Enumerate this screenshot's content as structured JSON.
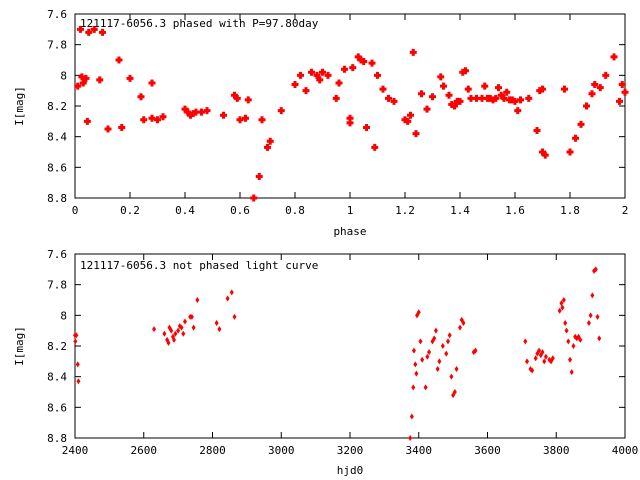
{
  "colors": {
    "points": "#ff0000",
    "axes": "#000000",
    "background": "#ffffff"
  },
  "chart_data": [
    {
      "type": "scatter",
      "title": "121117-6056.3 phased with P=97.80day",
      "xlabel": "phase",
      "ylabel": "I[mag]",
      "xlim": [
        0,
        2
      ],
      "ylim": [
        8.8,
        7.6
      ],
      "y_inverted": true,
      "grid": false,
      "marker": "cross",
      "x_ticks": [
        "0",
        "0.2",
        "0.4",
        "0.6",
        "0.8",
        "1",
        "1.2",
        "1.4",
        "1.6",
        "1.8",
        "2"
      ],
      "y_ticks": [
        "7.6",
        "7.8",
        "8",
        "8.2",
        "8.4",
        "8.6",
        "8.8"
      ],
      "series": [
        {
          "x": [
            0.01,
            0.02,
            0.025,
            0.03,
            0.04,
            0.045,
            0.05,
            0.07,
            0.09,
            0.1,
            0.12,
            0.16,
            0.17,
            0.2,
            0.24,
            0.25,
            0.28,
            0.28,
            0.3,
            0.32,
            0.4,
            0.41,
            0.42,
            0.43,
            0.44,
            0.46,
            0.48,
            0.54,
            0.58,
            0.59,
            0.6,
            0.62,
            0.63,
            0.65,
            0.67,
            0.68,
            0.7,
            0.71,
            0.75,
            0.8,
            0.82,
            0.84,
            0.86,
            0.88,
            0.89,
            0.9,
            0.92,
            0.95,
            0.96,
            0.98,
            1.0,
            1.0,
            1.01,
            1.03,
            1.04,
            1.05,
            1.06,
            1.08,
            1.09,
            1.1,
            1.12,
            1.14,
            1.16,
            1.2,
            1.21,
            1.22,
            1.23,
            1.24,
            1.26,
            1.28,
            1.3,
            1.33,
            1.34,
            1.36,
            1.37,
            1.38,
            1.39,
            1.4,
            1.41,
            1.42,
            1.43,
            1.44,
            1.46,
            1.48,
            1.49,
            1.5,
            1.51,
            1.52,
            1.53,
            1.54,
            1.55,
            1.56,
            1.57,
            1.58,
            1.59,
            1.6,
            1.61,
            1.62,
            1.65,
            1.68,
            1.69,
            1.7,
            1.7,
            1.71,
            1.78,
            1.8,
            1.82,
            1.84,
            1.86,
            1.88,
            1.89,
            1.91,
            1.93,
            1.96,
            1.98,
            1.99,
            2.0
          ],
          "y": [
            8.07,
            7.7,
            8.01,
            8.05,
            8.02,
            8.3,
            7.72,
            7.7,
            8.03,
            7.72,
            8.35,
            7.9,
            8.34,
            8.02,
            8.14,
            8.29,
            8.05,
            8.28,
            8.29,
            8.27,
            8.22,
            8.24,
            8.26,
            8.25,
            8.24,
            8.24,
            8.23,
            8.26,
            8.13,
            8.15,
            8.29,
            8.28,
            8.16,
            8.8,
            8.66,
            8.29,
            8.47,
            8.43,
            8.23,
            8.06,
            8.0,
            8.1,
            7.98,
            8.0,
            8.03,
            7.98,
            8.0,
            8.15,
            8.05,
            7.96,
            8.28,
            8.31,
            7.95,
            7.88,
            7.9,
            7.91,
            8.34,
            7.92,
            8.47,
            8.0,
            8.09,
            8.15,
            8.17,
            8.29,
            8.3,
            8.26,
            7.85,
            8.38,
            8.12,
            8.22,
            8.14,
            8.01,
            8.07,
            8.13,
            8.19,
            8.2,
            8.17,
            8.17,
            7.98,
            7.97,
            8.09,
            8.15,
            8.15,
            8.15,
            8.07,
            8.15,
            8.15,
            8.16,
            8.15,
            8.08,
            8.13,
            8.15,
            8.11,
            8.16,
            8.16,
            8.17,
            8.23,
            8.16,
            8.15,
            8.36,
            8.1,
            8.5,
            8.09,
            8.52,
            8.09,
            8.5,
            8.41,
            8.32,
            8.2,
            8.12,
            8.06,
            8.08,
            8.0,
            7.88,
            8.17,
            8.06,
            8.11
          ]
        }
      ]
    },
    {
      "type": "scatter",
      "title": "121117-6056.3 not phased light curve",
      "xlabel": "hjd0",
      "ylabel": "I[mag]",
      "xlim": [
        2400,
        4000
      ],
      "ylim": [
        8.8,
        7.6
      ],
      "y_inverted": true,
      "grid": false,
      "marker": "diamond",
      "x_ticks": [
        "2400",
        "2600",
        "2800",
        "3000",
        "3200",
        "3400",
        "3600",
        "3800",
        "4000"
      ],
      "y_ticks": [
        "7.6",
        "7.8",
        "8",
        "8.2",
        "8.4",
        "8.6",
        "8.8"
      ],
      "series": [
        {
          "x": [
            2400,
            2401,
            2404,
            2408,
            2410,
            2630,
            2660,
            2668,
            2672,
            2675,
            2680,
            2685,
            2688,
            2692,
            2700,
            2705,
            2710,
            2715,
            2720,
            2735,
            2740,
            2745,
            2756,
            2812,
            2820,
            2844,
            2856,
            2864,
            3375,
            3380,
            3384,
            3386,
            3390,
            3393,
            3395,
            3400,
            3405,
            3410,
            3420,
            3425,
            3430,
            3440,
            3445,
            3450,
            3455,
            3460,
            3470,
            3480,
            3485,
            3490,
            3495,
            3500,
            3505,
            3510,
            3520,
            3525,
            3530,
            3560,
            3565,
            3710,
            3715,
            3725,
            3730,
            3740,
            3745,
            3750,
            3755,
            3760,
            3765,
            3770,
            3780,
            3785,
            3790,
            3810,
            3815,
            3818,
            3822,
            3826,
            3830,
            3835,
            3840,
            3845,
            3850,
            3855,
            3860,
            3865,
            3870,
            3895,
            3900,
            3905,
            3910,
            3915,
            3920,
            3925
          ],
          "y": [
            8.13,
            8.17,
            8.13,
            8.32,
            8.43,
            8.09,
            8.12,
            8.16,
            8.18,
            8.08,
            8.1,
            8.14,
            8.16,
            8.12,
            8.1,
            8.07,
            8.08,
            8.12,
            8.04,
            8.01,
            8.01,
            8.08,
            7.9,
            8.05,
            8.09,
            7.89,
            7.85,
            8.01,
            8.8,
            8.66,
            8.47,
            8.23,
            8.32,
            8.38,
            8.0,
            7.98,
            8.17,
            8.29,
            8.47,
            8.27,
            8.24,
            8.17,
            8.15,
            8.1,
            8.35,
            8.3,
            8.2,
            8.25,
            8.17,
            8.13,
            8.4,
            8.52,
            8.5,
            8.35,
            8.08,
            8.03,
            8.05,
            8.24,
            8.23,
            8.17,
            8.3,
            8.35,
            8.36,
            8.28,
            8.25,
            8.23,
            8.26,
            8.24,
            8.3,
            8.27,
            8.29,
            8.3,
            8.28,
            7.97,
            7.92,
            7.95,
            7.9,
            8.05,
            8.1,
            8.17,
            8.29,
            8.37,
            8.2,
            8.14,
            8.15,
            8.14,
            8.16,
            8.05,
            8.0,
            7.87,
            7.71,
            7.7,
            8.01,
            8.15
          ]
        }
      ]
    }
  ]
}
